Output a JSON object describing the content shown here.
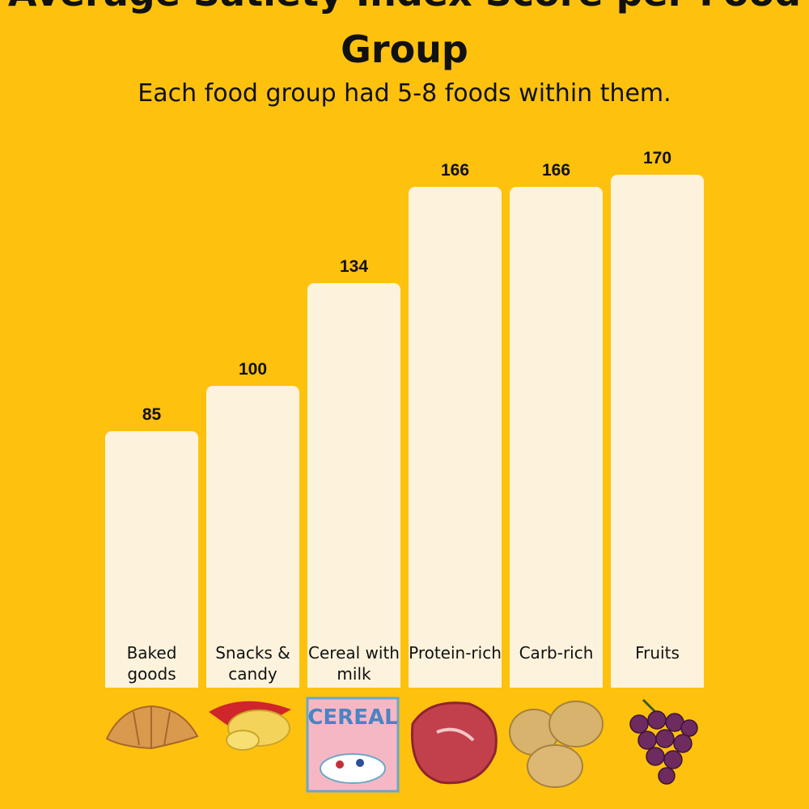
{
  "chart_data": {
    "type": "bar",
    "title": "Average Satiety Index Score per Food Group",
    "subtitle": "Each food group had 5-8 foods within them.",
    "categories": [
      "Baked goods",
      "Snacks & candy",
      "Cereal with milk",
      "Protein-rich",
      "Carb-rich",
      "Fruits"
    ],
    "values": [
      85,
      100,
      134,
      166,
      166,
      170
    ],
    "color": "#fdf3dd",
    "ylim": [
      0,
      228
    ]
  }
}
